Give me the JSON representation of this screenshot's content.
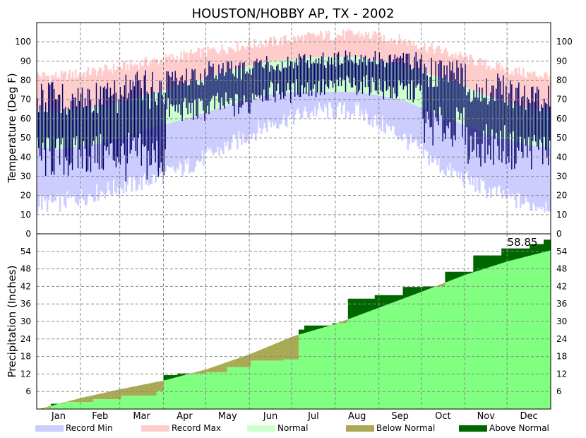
{
  "chart_data": [
    {
      "type": "line",
      "title": "HOUSTON/HOBBY AP, TX - 2002",
      "ylabel": "Temperature (Deg F)",
      "ylim": [
        0,
        110
      ],
      "yticks": [
        0,
        10,
        20,
        30,
        40,
        50,
        60,
        70,
        80,
        90,
        100
      ],
      "grid": true,
      "x_months": [
        "Jan",
        "Feb",
        "Mar",
        "Apr",
        "May",
        "Jun",
        "Jul",
        "Aug",
        "Sep",
        "Oct",
        "Nov",
        "Dec"
      ],
      "normal_high": [
        64,
        66,
        72,
        78,
        85,
        90,
        92,
        92,
        88,
        81,
        72,
        65
      ],
      "normal_low": [
        44,
        47,
        54,
        60,
        67,
        73,
        74,
        74,
        70,
        61,
        52,
        46
      ],
      "record_max_approx": [
        82,
        85,
        89,
        93,
        97,
        100,
        103,
        104,
        101,
        95,
        88,
        83
      ],
      "record_min_approx": [
        16,
        22,
        27,
        35,
        46,
        58,
        64,
        64,
        51,
        34,
        23,
        15
      ],
      "observed_range_approx": [
        {
          "month": "Jan",
          "low": 28,
          "high": 80
        },
        {
          "month": "Feb",
          "low": 30,
          "high": 80
        },
        {
          "month": "Mar",
          "low": 26,
          "high": 86
        },
        {
          "month": "Apr",
          "low": 58,
          "high": 87
        },
        {
          "month": "May",
          "low": 60,
          "high": 91
        },
        {
          "month": "Jun",
          "low": 68,
          "high": 93
        },
        {
          "month": "Jul",
          "low": 70,
          "high": 95
        },
        {
          "month": "Aug",
          "low": 72,
          "high": 96
        },
        {
          "month": "Sep",
          "low": 68,
          "high": 95
        },
        {
          "month": "Oct",
          "low": 45,
          "high": 92
        },
        {
          "month": "Nov",
          "low": 35,
          "high": 84
        },
        {
          "month": "Dec",
          "low": 33,
          "high": 80
        }
      ],
      "legend": [
        "Record Min",
        "Record Max",
        "Normal"
      ]
    },
    {
      "type": "area",
      "ylabel": "Precipitation (Inches)",
      "ylim": [
        0,
        60
      ],
      "yticks": [
        6,
        12,
        18,
        24,
        30,
        36,
        42,
        48,
        54
      ],
      "grid": true,
      "cumulative_actual": [
        {
          "day": 1,
          "value": 0
        },
        {
          "day": 5,
          "value": 0.5
        },
        {
          "day": 10,
          "value": 1.8
        },
        {
          "day": 20,
          "value": 2.4
        },
        {
          "day": 40,
          "value": 3.4
        },
        {
          "day": 60,
          "value": 4.6
        },
        {
          "day": 85,
          "value": 6.2
        },
        {
          "day": 90,
          "value": 11.6
        },
        {
          "day": 100,
          "value": 12.2
        },
        {
          "day": 120,
          "value": 12.6
        },
        {
          "day": 135,
          "value": 14.4
        },
        {
          "day": 152,
          "value": 16.6
        },
        {
          "day": 175,
          "value": 17.0
        },
        {
          "day": 186,
          "value": 27.2
        },
        {
          "day": 190,
          "value": 28.6
        },
        {
          "day": 210,
          "value": 29.4
        },
        {
          "day": 220,
          "value": 30.0
        },
        {
          "day": 221,
          "value": 37.8
        },
        {
          "day": 240,
          "value": 39.0
        },
        {
          "day": 260,
          "value": 41.8
        },
        {
          "day": 275,
          "value": 42.0
        },
        {
          "day": 290,
          "value": 47.0
        },
        {
          "day": 310,
          "value": 52.6
        },
        {
          "day": 330,
          "value": 55.0
        },
        {
          "day": 350,
          "value": 56.5
        },
        {
          "day": 360,
          "value": 58.0
        },
        {
          "day": 365,
          "value": 58.85
        }
      ],
      "cumulative_normal": [
        {
          "day": 1,
          "value": 0
        },
        {
          "day": 31,
          "value": 3.8
        },
        {
          "day": 59,
          "value": 6.8
        },
        {
          "day": 90,
          "value": 9.8
        },
        {
          "day": 120,
          "value": 13.6
        },
        {
          "day": 151,
          "value": 18.8
        },
        {
          "day": 181,
          "value": 24.8
        },
        {
          "day": 212,
          "value": 29.2
        },
        {
          "day": 243,
          "value": 34.8
        },
        {
          "day": 273,
          "value": 40.2
        },
        {
          "day": 304,
          "value": 46.0
        },
        {
          "day": 334,
          "value": 50.6
        },
        {
          "day": 365,
          "value": 54.4
        }
      ],
      "total_label": "58.85",
      "legend": [
        "Below Normal",
        "Above Normal"
      ]
    }
  ],
  "legend_items": [
    {
      "label": "Record Min",
      "color": "#ccccff"
    },
    {
      "label": "Record Max",
      "color": "#ffcccc"
    },
    {
      "label": "Normal",
      "color": "#ccffcc"
    },
    {
      "label": "Below Normal",
      "color": "#aaaa55"
    },
    {
      "label": "Above Normal",
      "color": "#006600"
    }
  ],
  "colors": {
    "record_min": "#ccccff",
    "record_max": "#ffcccc",
    "normal": "#ccffcc",
    "observed": "#000066",
    "precip_normal": "#80ff80",
    "below_normal": "#aaaa55",
    "above_normal": "#006600"
  }
}
